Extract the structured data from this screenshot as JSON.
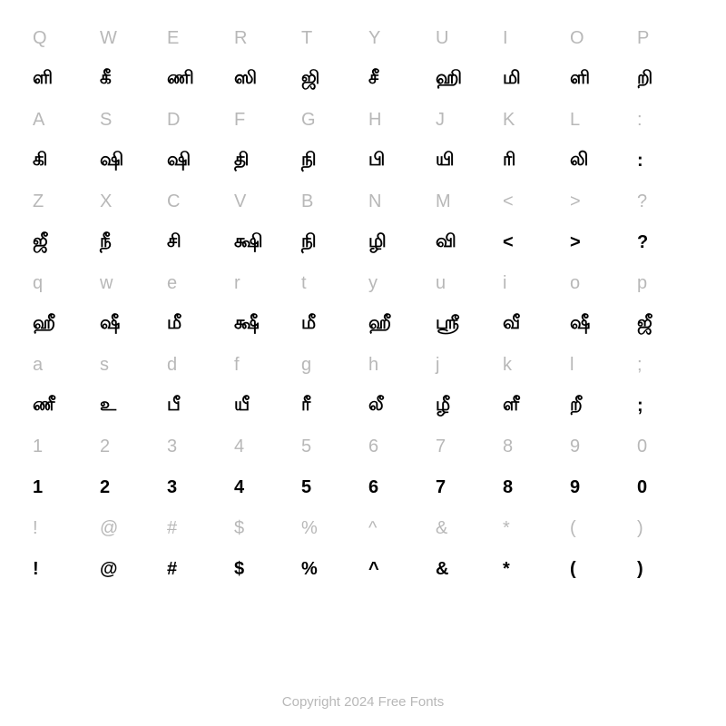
{
  "chart": {
    "type": "character-map",
    "columns": 10,
    "row_pairs": 8,
    "background_color": "#ffffff",
    "key_color": "#b8b8b8",
    "glyph_color": "#000000",
    "key_fontsize": 20,
    "glyph_fontsize": 20,
    "rows": [
      {
        "keys": [
          "Q",
          "W",
          "E",
          "R",
          "T",
          "Y",
          "U",
          "I",
          "O",
          "P"
        ],
        "glyphs": [
          "ளி",
          "கீ",
          "ணி",
          "ஸி",
          "ஜி",
          "சீ",
          "ஹி",
          "மி",
          "ளி",
          "றி"
        ]
      },
      {
        "keys": [
          "A",
          "S",
          "D",
          "F",
          "G",
          "H",
          "J",
          "K",
          "L",
          ":"
        ],
        "glyphs": [
          "கி",
          "ஷி",
          "ஷி",
          "தி",
          "நி",
          "பி",
          "யி",
          "ரி",
          "லி",
          ":"
        ]
      },
      {
        "keys": [
          "Z",
          "X",
          "C",
          "V",
          "B",
          "N",
          "M",
          "<",
          ">",
          "?"
        ],
        "glyphs": [
          "ஜீ",
          "நீ",
          "சி",
          "க்ஷி",
          "நி",
          "ழி",
          "வி",
          "<",
          ">",
          "?"
        ]
      },
      {
        "keys": [
          "q",
          "w",
          "e",
          "r",
          "t",
          "y",
          "u",
          "i",
          "o",
          "p"
        ],
        "glyphs": [
          "ஹீ",
          "ஷீ",
          "மீ",
          "க்ஷீ",
          "மீ",
          "ஹீ",
          "ஸ்ரீ",
          "வீ",
          "ஷீ",
          "ஜீ"
        ]
      },
      {
        "keys": [
          "a",
          "s",
          "d",
          "f",
          "g",
          "h",
          "j",
          "k",
          "l",
          ";"
        ],
        "glyphs": [
          "ணீ",
          "உ",
          "பீ",
          "யீ",
          "ரீ",
          "லீ",
          "ழீ",
          "ளீ",
          "றீ",
          ";"
        ]
      },
      {
        "keys": [
          "1",
          "2",
          "3",
          "4",
          "5",
          "6",
          "7",
          "8",
          "9",
          "0"
        ],
        "glyphs": [
          "1",
          "2",
          "3",
          "4",
          "5",
          "6",
          "7",
          "8",
          "9",
          "0"
        ]
      },
      {
        "keys": [
          "!",
          "@",
          "#",
          "$",
          "%",
          "^",
          "&",
          "*",
          "(",
          ")"
        ],
        "glyphs": [
          "!",
          "@",
          "#",
          "$",
          "%",
          "^",
          "&",
          "*",
          "(",
          ")"
        ]
      },
      {
        "keys": [
          "",
          "",
          "",
          "",
          "",
          "",
          "",
          "",
          "",
          ""
        ],
        "glyphs": [
          "",
          "",
          "",
          "",
          "",
          "",
          "",
          "",
          "",
          ""
        ]
      }
    ]
  },
  "copyright": "Copyright 2024 Free Fonts"
}
